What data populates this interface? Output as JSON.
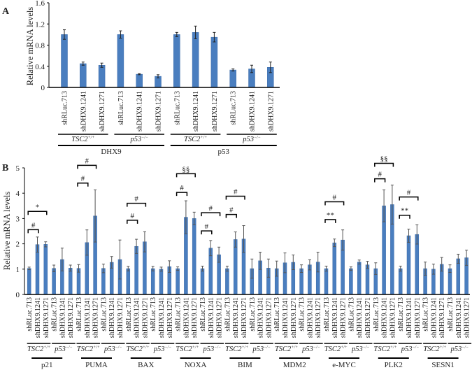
{
  "colors": {
    "bar": "#4a7ebf",
    "bar_edge": "#3a6aa8",
    "error": "#222222",
    "axis": "#000000"
  },
  "chart_data": [
    {
      "panel": "A",
      "type": "bar",
      "ylabel": "Relative mRNA levels",
      "ylim": [
        0,
        1.6
      ],
      "yticks": [
        "0",
        "0.4",
        "0.8",
        "1.2",
        "1.6"
      ],
      "categories": [
        "shRLuc.713",
        "shDHX9.1241",
        "shDHX9.1271",
        "shRLuc.713",
        "shDHX9.1241",
        "shDHX9.1271",
        "shRLuc.713",
        "shDHX9.1241",
        "shDHX9.1271",
        "shRLuc.713",
        "shDHX9.1241",
        "shDHX9.1271"
      ],
      "values": [
        1.0,
        0.45,
        0.42,
        1.0,
        0.25,
        0.21,
        1.0,
        1.04,
        0.95,
        0.33,
        0.35,
        0.38
      ],
      "errors": [
        0.09,
        0.03,
        0.04,
        0.07,
        0.01,
        0.03,
        0.04,
        0.12,
        0.09,
        0.02,
        0.07,
        0.1
      ],
      "cell_groups": [
        {
          "name": "TSC2",
          "sup": "+/+"
        },
        {
          "name": "p53",
          "sup": "−/−"
        },
        {
          "name": "TSC2",
          "sup": "+/+"
        },
        {
          "name": "p53",
          "sup": "−/−"
        }
      ],
      "genes": [
        "DHX9",
        "p53"
      ]
    },
    {
      "panel": "B",
      "type": "bar",
      "ylabel": "Relative mRNA levels",
      "ylim": [
        0,
        5
      ],
      "yticks": [
        "0",
        "1",
        "2",
        "3",
        "4",
        "5"
      ],
      "sample_labels": [
        "shRLuc.713",
        "shDHX9.1241",
        "shDHX9.1271",
        "shRLuc.713",
        "shDHX9.1241",
        "shDHX9.1271"
      ],
      "cell_groups": [
        {
          "name": "TSC2",
          "sup": "+/+"
        },
        {
          "name": "p53",
          "sup": "−/−"
        }
      ],
      "genes": [
        {
          "name": "p21",
          "values": [
            1.03,
            1.97,
            1.98,
            1.03,
            1.38,
            1.04
          ],
          "errors": [
            0.05,
            0.3,
            0.1,
            0.13,
            0.45,
            0.12
          ]
        },
        {
          "name": "PUMA",
          "values": [
            1.03,
            2.05,
            3.1,
            1.03,
            1.27,
            1.38
          ],
          "errors": [
            0.15,
            0.5,
            1.03,
            0.17,
            0.23,
            0.77
          ]
        },
        {
          "name": "BAX",
          "values": [
            1.02,
            1.9,
            2.08,
            1.02,
            1.0,
            1.1
          ],
          "errors": [
            0.09,
            0.28,
            0.4,
            0.09,
            0.08,
            0.23
          ]
        },
        {
          "name": "NOXA",
          "values": [
            1.02,
            3.05,
            3.0,
            1.02,
            1.83,
            1.57
          ],
          "errors": [
            0.07,
            0.65,
            0.25,
            0.1,
            0.3,
            0.3
          ]
        },
        {
          "name": "BIM",
          "values": [
            1.02,
            2.17,
            2.19,
            1.02,
            1.33,
            1.04
          ],
          "errors": [
            0.1,
            0.3,
            0.53,
            0.38,
            0.34,
            0.36
          ]
        },
        {
          "name": "MDM2",
          "values": [
            1.02,
            1.25,
            1.27,
            1.02,
            1.17,
            1.28
          ],
          "errors": [
            0.3,
            0.39,
            0.29,
            0.15,
            0.2,
            0.39
          ]
        },
        {
          "name": "e-MYC",
          "values": [
            1.02,
            2.04,
            2.15,
            1.02,
            1.28,
            1.17
          ],
          "errors": [
            0.1,
            0.15,
            0.4,
            0.07,
            0.08,
            0.14
          ]
        },
        {
          "name": "PLK2",
          "values": [
            1.02,
            3.5,
            3.55,
            1.02,
            2.32,
            2.37
          ],
          "errors": [
            0.23,
            0.63,
            0.77,
            0.1,
            0.26,
            0.38
          ]
        },
        {
          "name": "SESN1",
          "values": [
            1.02,
            1.0,
            1.19,
            1.02,
            1.41,
            1.45
          ],
          "errors": [
            0.26,
            0.2,
            0.27,
            0.15,
            0.18,
            0.3
          ]
        }
      ],
      "annotations": [
        {
          "gene": 0,
          "from": 0,
          "to": 1,
          "y": 2.56,
          "label": "#"
        },
        {
          "gene": 0,
          "from": 0,
          "to": 2,
          "y": 3.28,
          "label": "*"
        },
        {
          "gene": 1,
          "from": 0,
          "to": 1,
          "y": 4.4,
          "label": "#"
        },
        {
          "gene": 1,
          "from": 0,
          "to": 2,
          "y": 5.1,
          "label": "#"
        },
        {
          "gene": 2,
          "from": 0,
          "to": 1,
          "y": 2.93,
          "label": "#"
        },
        {
          "gene": 2,
          "from": 0,
          "to": 2,
          "y": 3.6,
          "label": "#"
        },
        {
          "gene": 3,
          "from": 0,
          "to": 1,
          "y": 4.03,
          "label": "#"
        },
        {
          "gene": 3,
          "from": 0,
          "to": 2,
          "y": 4.77,
          "label": "§§"
        },
        {
          "gene": 3,
          "from": 3,
          "to": 4,
          "y": 2.51,
          "label": "#"
        },
        {
          "gene": 3,
          "from": 3,
          "to": 5,
          "y": 3.23,
          "label": "#"
        },
        {
          "gene": 4,
          "from": 0,
          "to": 1,
          "y": 3.16,
          "label": "#"
        },
        {
          "gene": 4,
          "from": 0,
          "to": 2,
          "y": 3.88,
          "label": "#"
        },
        {
          "gene": 6,
          "from": 0,
          "to": 1,
          "y": 2.96,
          "label": "**"
        },
        {
          "gene": 6,
          "from": 0,
          "to": 2,
          "y": 3.66,
          "label": "#"
        },
        {
          "gene": 7,
          "from": 0,
          "to": 1,
          "y": 4.57,
          "label": "#"
        },
        {
          "gene": 7,
          "from": 0,
          "to": 2,
          "y": 5.18,
          "label": "§§"
        },
        {
          "gene": 7,
          "from": 3,
          "to": 4,
          "y": 3.13,
          "label": "**"
        },
        {
          "gene": 7,
          "from": 3,
          "to": 5,
          "y": 3.85,
          "label": "#"
        }
      ]
    }
  ]
}
